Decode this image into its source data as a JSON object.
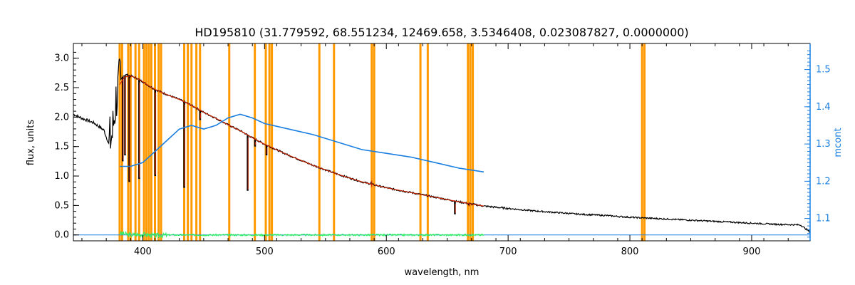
{
  "chart_data": {
    "type": "line",
    "title": "HD195810    (31.779592, 68.551234, 12469.658, 3.5346408, 0.023087827, 0.0000000)",
    "xlabel": "wavelength, nm",
    "ylabel": "flux, units",
    "y2label": "mcont",
    "xlim": [
      343,
      948
    ],
    "ylim": [
      -0.1,
      3.25
    ],
    "y2lim": [
      1.04,
      1.57
    ],
    "xticks": [
      "400",
      "500",
      "600",
      "700",
      "800",
      "900"
    ],
    "xtick_values": [
      400,
      500,
      600,
      700,
      800,
      900
    ],
    "yticks": [
      "0.0",
      "0.5",
      "1.0",
      "1.5",
      "2.0",
      "2.5",
      "3.0"
    ],
    "ytick_values": [
      0.0,
      0.5,
      1.0,
      1.5,
      2.0,
      2.5,
      3.0
    ],
    "y2ticks": [
      "1.1",
      "1.2",
      "1.3",
      "1.4",
      "1.5"
    ],
    "y2tick_values": [
      1.1,
      1.2,
      1.3,
      1.4,
      1.5
    ],
    "grid": false,
    "colors": {
      "spectrum": "#000000",
      "model": "#cc2200",
      "residual": "#33ee66",
      "mcont": "#1a7fe0",
      "masks": "#ff9900",
      "axis_right": "#1a7fe0"
    },
    "mask_lines": [
      381,
      383,
      388,
      390,
      394,
      397,
      401,
      403,
      405,
      407,
      410,
      413,
      415,
      434,
      437,
      440,
      444,
      447,
      471,
      492,
      501,
      504,
      506,
      545,
      557,
      588,
      590,
      628,
      634,
      667,
      669,
      671,
      810,
      812
    ],
    "series": [
      {
        "key": "spectrum",
        "x": [
          343,
          350,
          360,
          368,
          372,
          375,
          378,
          381,
          384,
          387,
          390,
          395,
          400,
          405,
          410,
          420,
          430,
          440,
          450,
          460,
          470,
          480,
          490,
          500,
          520,
          540,
          560,
          580,
          600,
          620,
          640,
          660,
          680,
          700,
          720,
          740,
          760,
          780,
          800,
          820,
          840,
          860,
          880,
          900,
          920,
          940,
          948
        ],
        "y": [
          2.05,
          1.98,
          1.9,
          1.78,
          1.55,
          1.7,
          2.3,
          2.6,
          2.7,
          2.72,
          2.7,
          2.66,
          2.6,
          2.53,
          2.47,
          2.38,
          2.3,
          2.2,
          2.08,
          1.98,
          1.87,
          1.77,
          1.65,
          1.54,
          1.35,
          1.18,
          1.03,
          0.9,
          0.8,
          0.72,
          0.64,
          0.56,
          0.49,
          0.45,
          0.41,
          0.38,
          0.35,
          0.33,
          0.3,
          0.28,
          0.26,
          0.24,
          0.22,
          0.2,
          0.18,
          0.17,
          0.05
        ]
      },
      {
        "key": "model",
        "x": [
          381,
          385,
          390,
          395,
          400,
          405,
          410,
          420,
          430,
          440,
          450,
          460,
          470,
          480,
          490,
          500,
          520,
          540,
          560,
          580,
          600,
          620,
          640,
          660,
          680
        ],
        "y": [
          2.55,
          2.68,
          2.7,
          2.66,
          2.6,
          2.53,
          2.47,
          2.38,
          2.3,
          2.2,
          2.08,
          1.98,
          1.87,
          1.77,
          1.65,
          1.54,
          1.35,
          1.18,
          1.03,
          0.9,
          0.8,
          0.72,
          0.64,
          0.56,
          0.49
        ]
      },
      {
        "key": "absorption_lines",
        "x": [
          383.5,
          385.4,
          388.9,
          397.0,
          410.2,
          434.0,
          447.1,
          486.1,
          492.2,
          501.6,
          587.6,
          656.3,
          667.8
        ],
        "y": [
          1.25,
          1.35,
          0.9,
          0.95,
          1.0,
          0.8,
          1.95,
          0.75,
          1.5,
          1.35,
          0.9,
          0.35,
          0.5
        ]
      },
      {
        "key": "residual",
        "x": [
          381,
          390,
          400,
          410,
          420,
          450,
          500,
          550,
          600,
          650,
          680
        ],
        "y": [
          0.03,
          0.0,
          0.01,
          -0.01,
          0.0,
          0.0,
          0.0,
          0.0,
          0.0,
          0.0,
          0.0
        ]
      },
      {
        "key": "mcont",
        "axis": "right",
        "x": [
          381,
          390,
          400,
          410,
          420,
          430,
          440,
          450,
          460,
          470,
          480,
          490,
          500,
          520,
          540,
          560,
          580,
          600,
          620,
          640,
          660,
          680
        ],
        "y2": [
          1.24,
          1.24,
          1.25,
          1.28,
          1.31,
          1.34,
          1.35,
          1.34,
          1.35,
          1.37,
          1.38,
          1.37,
          1.355,
          1.34,
          1.325,
          1.305,
          1.285,
          1.275,
          1.265,
          1.25,
          1.235,
          1.225
        ]
      }
    ]
  }
}
